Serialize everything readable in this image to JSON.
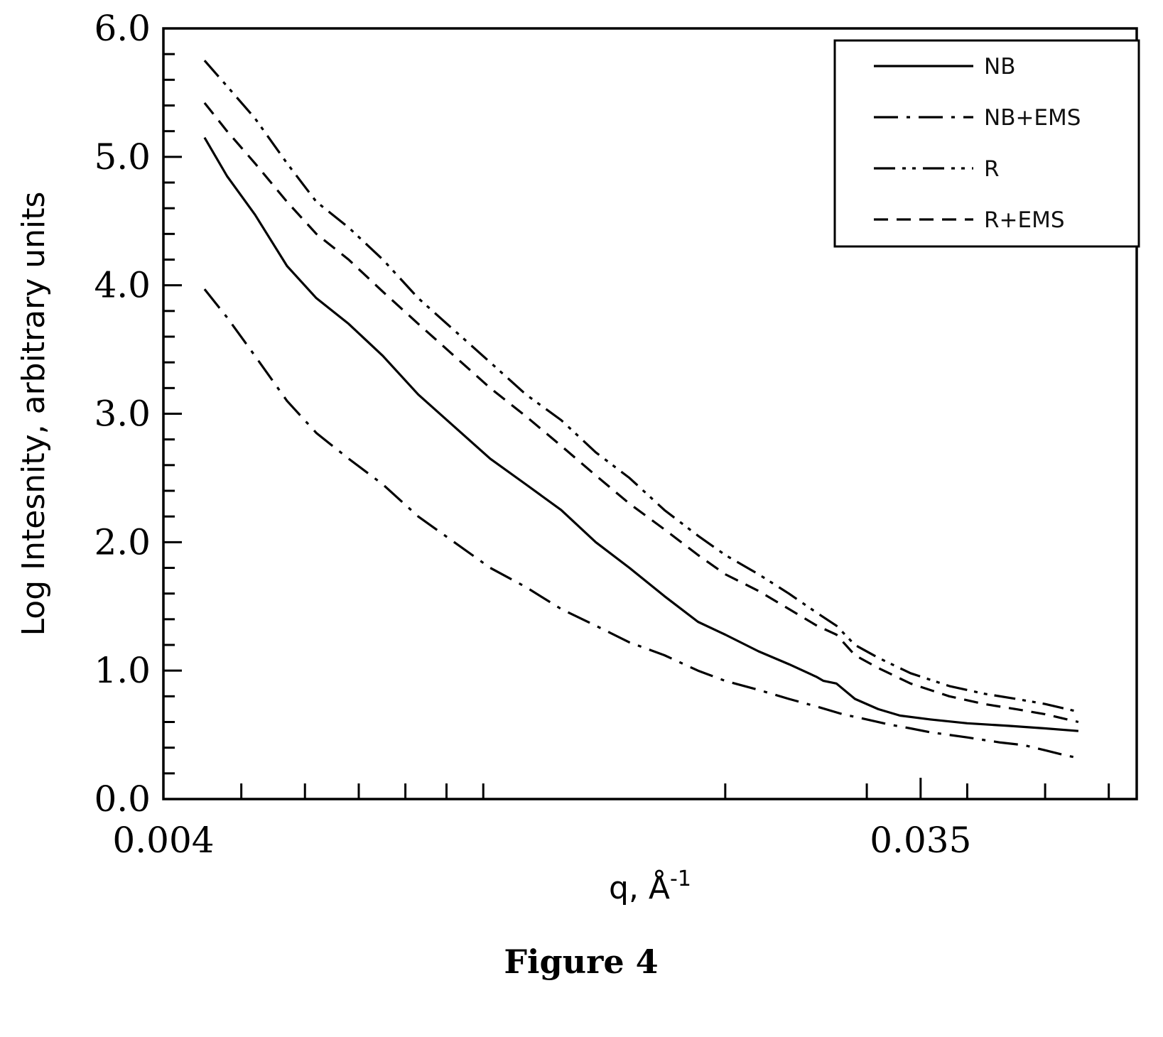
{
  "chart_data": {
    "type": "line",
    "xlabel": "q,  Å",
    "xlabel_sup": "-1",
    "ylabel": "Log Intesnity, arbitrary units",
    "x_scale": "log",
    "xlim": [
      0.004,
      0.065
    ],
    "ylim": [
      0.0,
      6.0
    ],
    "x_tick_labels": [
      "0.004",
      "0.035"
    ],
    "x_ticks": [
      0.004,
      0.035
    ],
    "x_minor_ticks": [
      0.005,
      0.006,
      0.007,
      0.008,
      0.009,
      0.01,
      0.02,
      0.03,
      0.04,
      0.05,
      0.06
    ],
    "y_tick_labels": [
      "0.0",
      "1.0",
      "2.0",
      "3.0",
      "4.0",
      "5.0",
      "6.0"
    ],
    "y_ticks": [
      0,
      1,
      2,
      3,
      4,
      5,
      6
    ],
    "grid": false,
    "legend_position": "top-right",
    "series": [
      {
        "name": "NB",
        "dash": "solid",
        "points": [
          [
            0.0045,
            5.15
          ],
          [
            0.0048,
            4.85
          ],
          [
            0.0052,
            4.55
          ],
          [
            0.0057,
            4.15
          ],
          [
            0.0062,
            3.9
          ],
          [
            0.0068,
            3.7
          ],
          [
            0.0075,
            3.45
          ],
          [
            0.0083,
            3.15
          ],
          [
            0.0092,
            2.9
          ],
          [
            0.0102,
            2.65
          ],
          [
            0.0113,
            2.45
          ],
          [
            0.0125,
            2.25
          ],
          [
            0.0138,
            2.0
          ],
          [
            0.0152,
            1.8
          ],
          [
            0.0168,
            1.58
          ],
          [
            0.0185,
            1.38
          ],
          [
            0.02,
            1.28
          ],
          [
            0.022,
            1.15
          ],
          [
            0.024,
            1.05
          ],
          [
            0.026,
            0.95
          ],
          [
            0.0265,
            0.92
          ],
          [
            0.0275,
            0.9
          ],
          [
            0.029,
            0.78
          ],
          [
            0.031,
            0.7
          ],
          [
            0.033,
            0.65
          ],
          [
            0.036,
            0.62
          ],
          [
            0.04,
            0.59
          ],
          [
            0.045,
            0.57
          ],
          [
            0.05,
            0.55
          ],
          [
            0.055,
            0.53
          ]
        ]
      },
      {
        "name": "NB+EMS",
        "dash": "dash-dot",
        "points": [
          [
            0.0045,
            3.97
          ],
          [
            0.0048,
            3.75
          ],
          [
            0.0052,
            3.45
          ],
          [
            0.0057,
            3.1
          ],
          [
            0.0062,
            2.85
          ],
          [
            0.0068,
            2.65
          ],
          [
            0.0075,
            2.45
          ],
          [
            0.0083,
            2.2
          ],
          [
            0.0092,
            2.0
          ],
          [
            0.0102,
            1.8
          ],
          [
            0.0113,
            1.65
          ],
          [
            0.0125,
            1.48
          ],
          [
            0.0138,
            1.35
          ],
          [
            0.0152,
            1.22
          ],
          [
            0.0168,
            1.12
          ],
          [
            0.0185,
            1.0
          ],
          [
            0.02,
            0.92
          ],
          [
            0.022,
            0.85
          ],
          [
            0.024,
            0.78
          ],
          [
            0.026,
            0.72
          ],
          [
            0.028,
            0.66
          ],
          [
            0.03,
            0.62
          ],
          [
            0.032,
            0.58
          ],
          [
            0.034,
            0.55
          ],
          [
            0.036,
            0.52
          ],
          [
            0.04,
            0.48
          ],
          [
            0.044,
            0.44
          ],
          [
            0.047,
            0.42
          ],
          [
            0.05,
            0.38
          ],
          [
            0.053,
            0.34
          ],
          [
            0.055,
            0.32
          ]
        ]
      },
      {
        "name": "R",
        "dash": "dash-dot-dot",
        "points": [
          [
            0.0045,
            5.75
          ],
          [
            0.0048,
            5.55
          ],
          [
            0.0052,
            5.3
          ],
          [
            0.0057,
            4.95
          ],
          [
            0.0062,
            4.65
          ],
          [
            0.0068,
            4.45
          ],
          [
            0.0075,
            4.2
          ],
          [
            0.0083,
            3.9
          ],
          [
            0.0092,
            3.65
          ],
          [
            0.0102,
            3.4
          ],
          [
            0.0113,
            3.15
          ],
          [
            0.0125,
            2.95
          ],
          [
            0.0138,
            2.7
          ],
          [
            0.0152,
            2.5
          ],
          [
            0.0168,
            2.25
          ],
          [
            0.0185,
            2.05
          ],
          [
            0.02,
            1.9
          ],
          [
            0.022,
            1.75
          ],
          [
            0.024,
            1.6
          ],
          [
            0.026,
            1.45
          ],
          [
            0.0275,
            1.35
          ],
          [
            0.029,
            1.2
          ],
          [
            0.031,
            1.1
          ],
          [
            0.034,
            0.98
          ],
          [
            0.038,
            0.88
          ],
          [
            0.042,
            0.82
          ],
          [
            0.046,
            0.78
          ],
          [
            0.05,
            0.74
          ],
          [
            0.055,
            0.68
          ]
        ]
      },
      {
        "name": "R+EMS",
        "dash": "dashed",
        "points": [
          [
            0.0045,
            5.42
          ],
          [
            0.0048,
            5.2
          ],
          [
            0.0052,
            4.95
          ],
          [
            0.0057,
            4.65
          ],
          [
            0.0062,
            4.4
          ],
          [
            0.0068,
            4.2
          ],
          [
            0.0075,
            3.95
          ],
          [
            0.0083,
            3.7
          ],
          [
            0.0092,
            3.45
          ],
          [
            0.0102,
            3.2
          ],
          [
            0.0113,
            2.98
          ],
          [
            0.0125,
            2.75
          ],
          [
            0.0138,
            2.52
          ],
          [
            0.0152,
            2.3
          ],
          [
            0.0168,
            2.1
          ],
          [
            0.0185,
            1.9
          ],
          [
            0.02,
            1.75
          ],
          [
            0.022,
            1.62
          ],
          [
            0.024,
            1.48
          ],
          [
            0.026,
            1.35
          ],
          [
            0.0275,
            1.28
          ],
          [
            0.029,
            1.12
          ],
          [
            0.031,
            1.02
          ],
          [
            0.034,
            0.9
          ],
          [
            0.038,
            0.8
          ],
          [
            0.042,
            0.74
          ],
          [
            0.046,
            0.7
          ],
          [
            0.05,
            0.66
          ],
          [
            0.055,
            0.6
          ]
        ]
      }
    ]
  },
  "caption": "Figure 4"
}
